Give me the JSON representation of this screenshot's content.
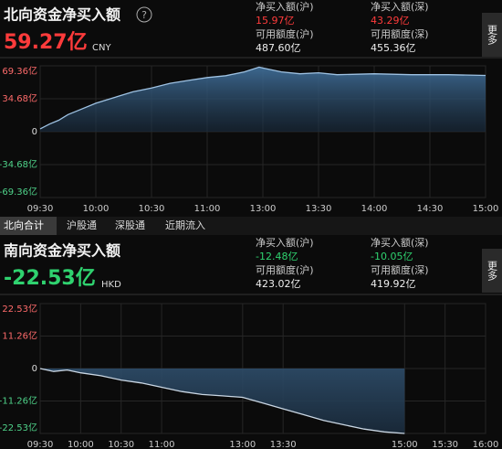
{
  "north": {
    "title": "北向资金净买入额",
    "help": "?",
    "value": "59.27亿",
    "currency": "CNY",
    "stats": [
      {
        "label": "净买入额(沪)",
        "value": "15.97亿"
      },
      {
        "label": "净买入额(深)",
        "value": "43.29亿"
      },
      {
        "label": "可用额度(沪)",
        "value": "487.60亿"
      },
      {
        "label": "可用额度(深)",
        "value": "455.36亿"
      }
    ],
    "more": "更多"
  },
  "tabs": [
    "北向合计",
    "沪股通",
    "深股通",
    "近期流入"
  ],
  "south": {
    "title": "南向资金净买入额",
    "value": "-22.53亿",
    "currency": "HKD",
    "stats": [
      {
        "label": "净买入额(沪)",
        "value": "-12.48亿"
      },
      {
        "label": "净买入额(深)",
        "value": "-10.05亿"
      },
      {
        "label": "可用额度(沪)",
        "value": "423.02亿"
      },
      {
        "label": "可用额度(深)",
        "value": "419.92亿"
      }
    ],
    "more": "更多"
  },
  "chart_data": [
    {
      "type": "area",
      "color": "#9ec2e3",
      "x": [
        0,
        5,
        10,
        15,
        20,
        30,
        40,
        50,
        60,
        70,
        80,
        90,
        100,
        110,
        118,
        120,
        130,
        140,
        150,
        160,
        180,
        200,
        220,
        240
      ],
      "values": [
        3,
        8,
        12,
        18,
        22,
        30,
        36,
        42,
        46,
        51,
        54,
        57,
        59,
        63,
        68,
        67,
        63,
        61,
        62,
        60,
        61,
        60,
        60,
        59.27
      ],
      "xlim": [
        0,
        240
      ],
      "xticks": [
        {
          "value": 0,
          "label": "09:30"
        },
        {
          "value": 30,
          "label": "10:00"
        },
        {
          "value": 60,
          "label": "10:30"
        },
        {
          "value": 90,
          "label": "11:00"
        },
        {
          "value": 120,
          "label": "13:00"
        },
        {
          "value": 150,
          "label": "13:30"
        },
        {
          "value": 180,
          "label": "14:00"
        },
        {
          "value": 210,
          "label": "14:30"
        },
        {
          "value": 240,
          "label": "15:00"
        }
      ],
      "ylim": [
        -69.36,
        69.36
      ],
      "yticks": [
        {
          "value": 69.36,
          "label": "69.36亿"
        },
        {
          "value": 34.68,
          "label": "34.68亿"
        },
        0,
        {
          "value": -34.68,
          "label": "-34.68亿"
        },
        {
          "value": -69.36,
          "label": "-69.36亿"
        }
      ],
      "grid": true
    },
    {
      "type": "area",
      "color": "#c9d6e3",
      "x": [
        0,
        10,
        20,
        30,
        45,
        60,
        75,
        90,
        105,
        120,
        135,
        150,
        165,
        180,
        195,
        210,
        225,
        240,
        255,
        270
      ],
      "values": [
        0,
        -1,
        -0.5,
        -1.5,
        -2.5,
        -4,
        -5,
        -6.5,
        -8,
        -9,
        -9.5,
        -10,
        -12,
        -14,
        -16,
        -18,
        -19.5,
        -21,
        -22,
        -22.53
      ],
      "xlim": [
        0,
        330
      ],
      "xticks": [
        {
          "value": 0,
          "label": "09:30"
        },
        {
          "value": 30,
          "label": "10:00"
        },
        {
          "value": 60,
          "label": "10:30"
        },
        {
          "value": 90,
          "label": "11:00"
        },
        {
          "value": 150,
          "label": "13:00"
        },
        {
          "value": 180,
          "label": "13:30"
        },
        {
          "value": 270,
          "label": "15:00"
        },
        {
          "value": 300,
          "label": "15:30"
        },
        {
          "value": 330,
          "label": "16:00"
        }
      ],
      "ylim": [
        -22.53,
        22.53
      ],
      "yticks": [
        {
          "value": 22.53,
          "label": "22.53亿"
        },
        {
          "value": 11.26,
          "label": "11.26亿"
        },
        0,
        {
          "value": -11.26,
          "label": "-11.26亿"
        },
        {
          "value": -22.53,
          "label": "-22.53亿"
        }
      ],
      "grid": true
    }
  ]
}
